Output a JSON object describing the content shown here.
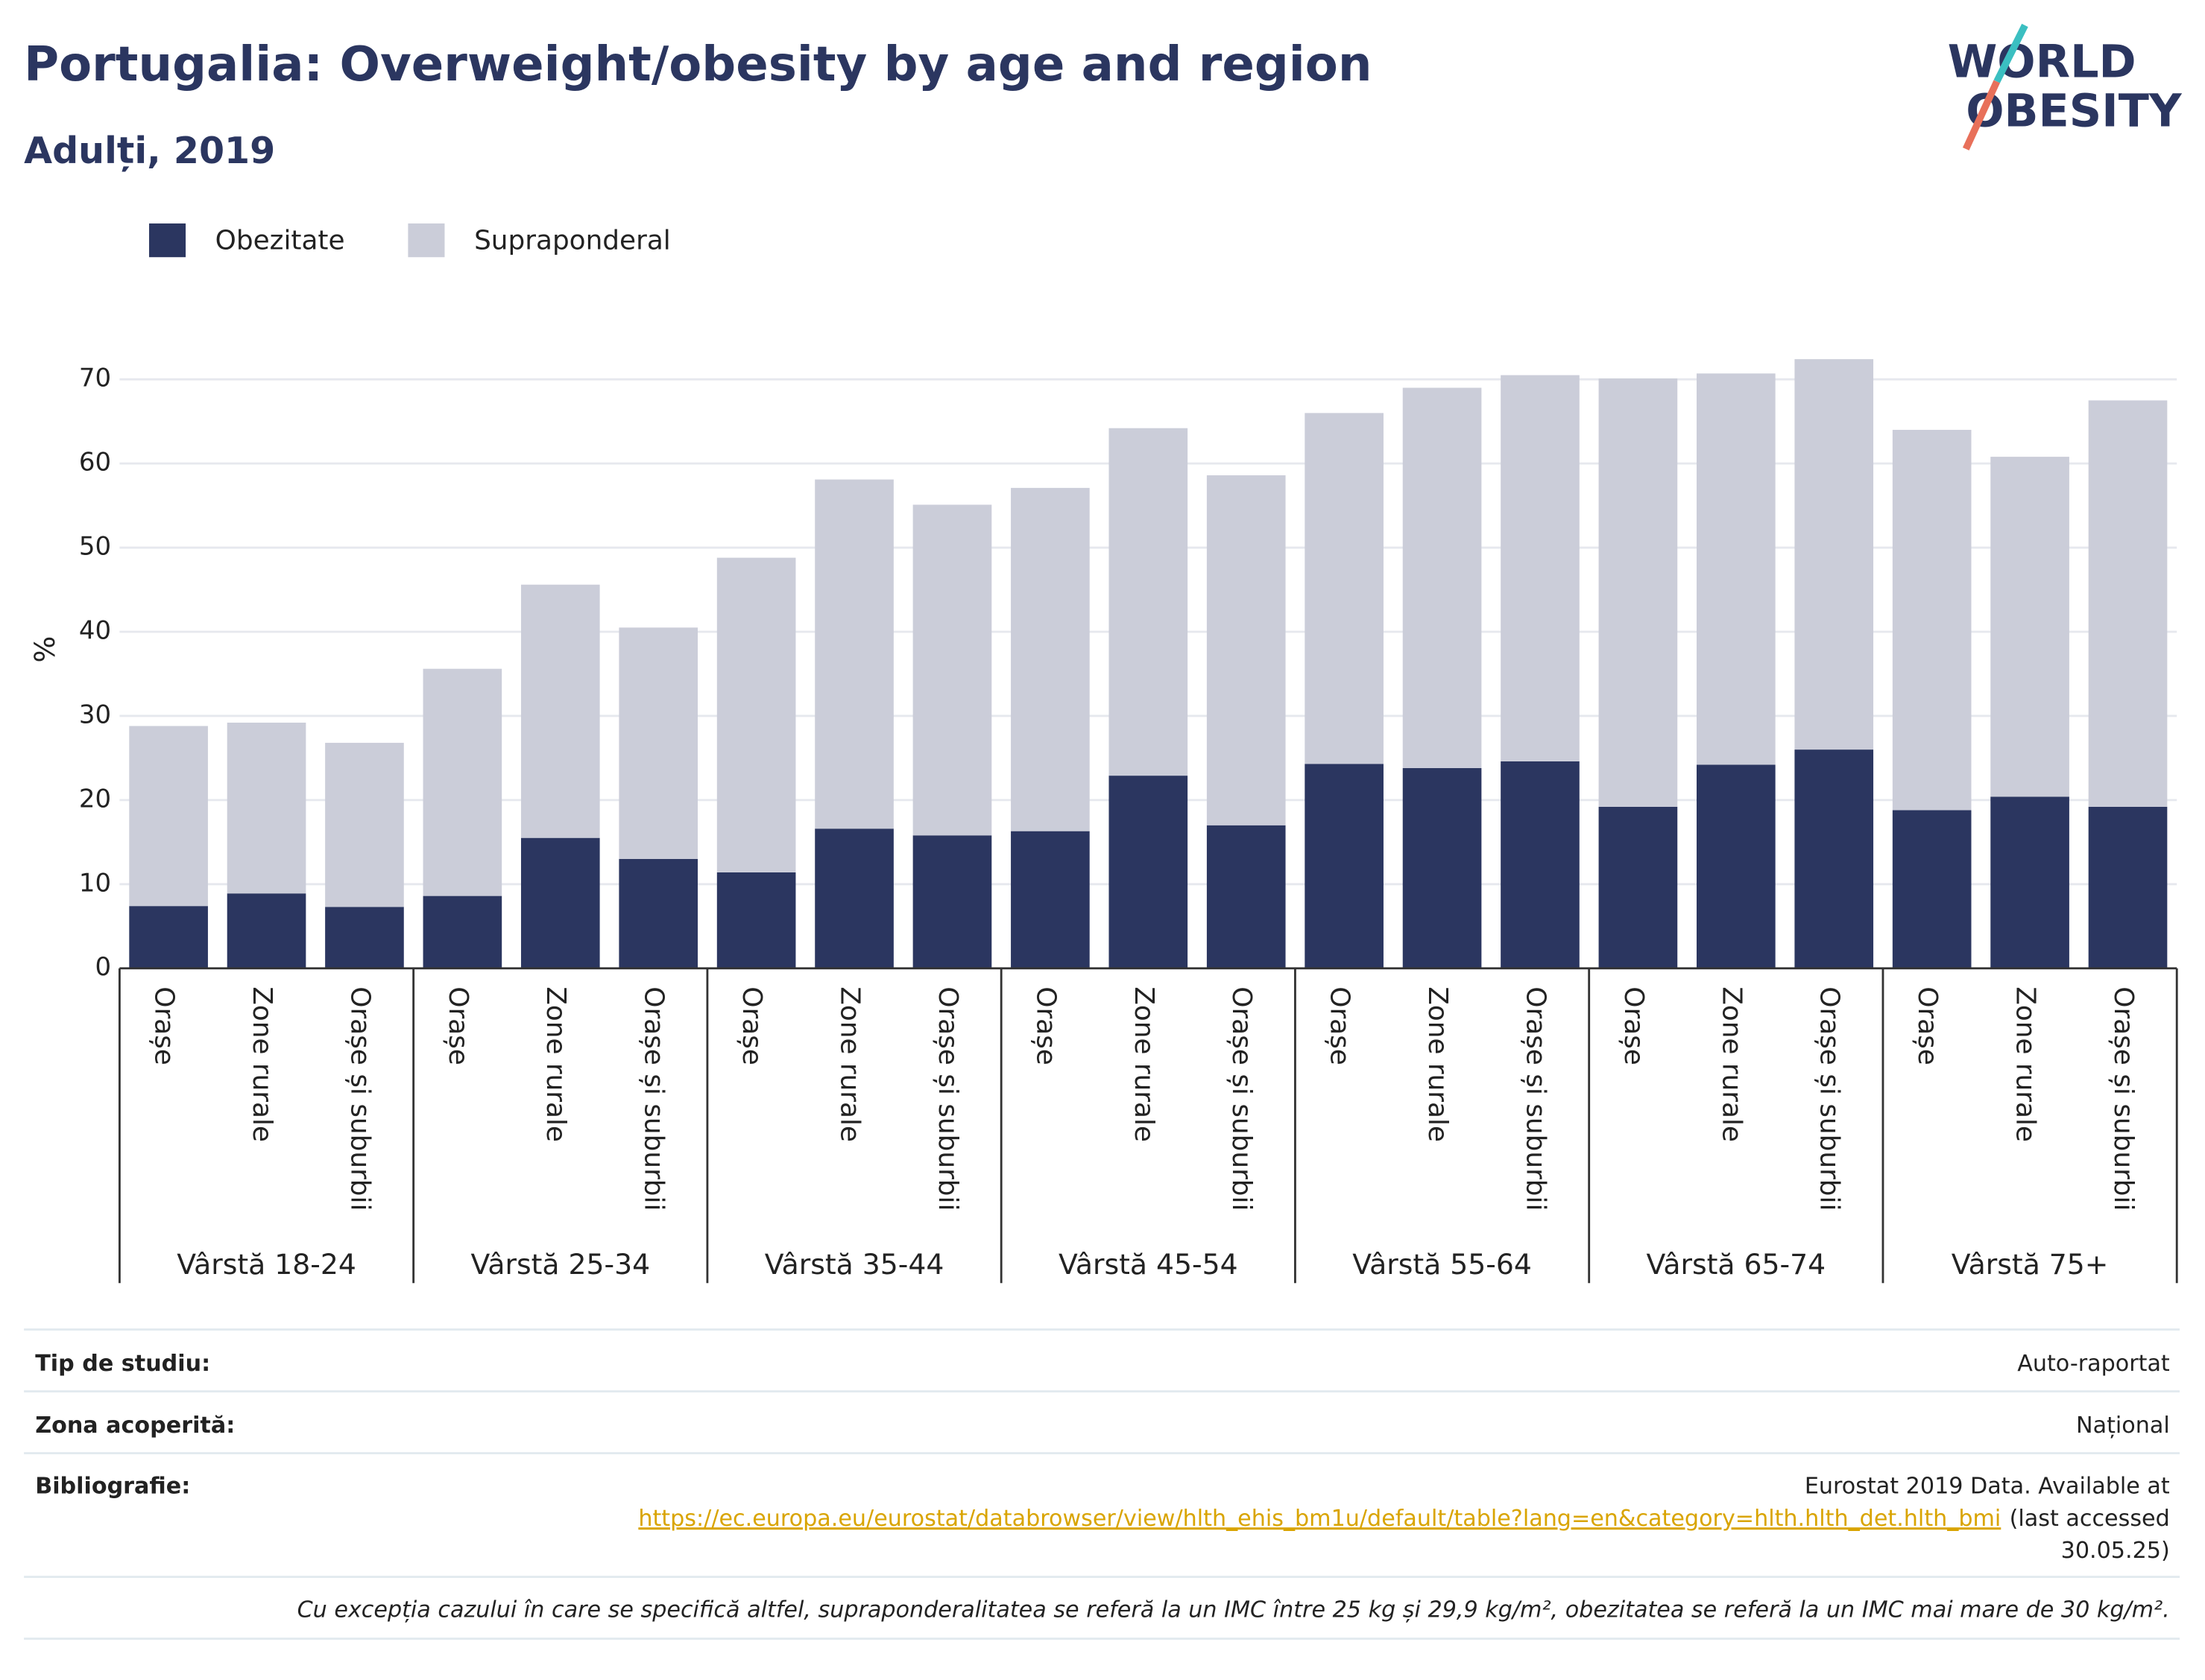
{
  "chart_data": {
    "type": "stacked_bar",
    "title": "Portugalia: Overweight/obesity by age and region",
    "subtitle": "Adulți, 2019",
    "y_label": "%",
    "logo": [
      "WORLD",
      "OBESITY"
    ],
    "categories": [
      "Orașe",
      "Zone rurale",
      "Orașe și suburbii",
      "Orașe",
      "Zone rurale",
      "Orașe și suburbii",
      "Orașe",
      "Zone rurale",
      "Orașe și suburbii",
      "Orașe",
      "Zone rurale",
      "Orașe și suburbii",
      "Orașe",
      "Zone rurale",
      "Orașe și suburbii",
      "Orașe",
      "Zone rurale",
      "Orașe și suburbii",
      "Orașe",
      "Zone rurale",
      "Orașe și suburbii"
    ],
    "groups": [
      "Vârstă 18-24",
      "Vârstă 25-34",
      "Vârstă 35-44",
      "Vârstă 45-54",
      "Vârstă 55-64",
      "Vârstă 65-74",
      "Vârstă 75+"
    ],
    "series": [
      {
        "name": "Obezitate",
        "color": "#2b3660",
        "values": [
          7.4,
          8.9,
          7.3,
          8.6,
          15.5,
          13.0,
          11.4,
          16.6,
          15.8,
          16.3,
          22.9,
          17.0,
          24.3,
          23.8,
          24.6,
          19.2,
          24.2,
          26.0,
          18.8,
          20.4,
          19.2
        ]
      },
      {
        "name": "Supraponderal",
        "color": "#cbcdd9",
        "values": [
          21.4,
          20.3,
          19.5,
          27.0,
          30.1,
          27.5,
          37.4,
          41.5,
          39.3,
          40.8,
          41.3,
          41.6,
          41.7,
          45.2,
          45.9,
          50.9,
          46.5,
          46.4,
          45.2,
          40.4,
          48.3
        ]
      }
    ],
    "ylim": [
      0,
      75
    ],
    "yticks": [
      0,
      10,
      20,
      30,
      40,
      50,
      60,
      70
    ],
    "grid": true,
    "legend": "top-left"
  },
  "info_table": {
    "rows": [
      {
        "label": "Tip de studiu:",
        "value": [
          "Auto-raportat"
        ]
      },
      {
        "label": "Zona acoperită:",
        "value": [
          "Național"
        ]
      },
      {
        "label": "Bibliografie:",
        "value": [
          "Eurostat 2019 Data. Available at",
          "https://ec.europa.eu/eurostat/databrowser/view/hlth_ehis_bm1u/default/table?lang=en&category=hlth.hlth_det.hlth_bmi",
          "(last accessed",
          "30.05.25)"
        ]
      }
    ],
    "note": "Cu excepția cazului în care se specifică altfel, supraponderalitatea se referă la un IMC între 25 kg și 29,9 kg/m², obezitatea se referă la un IMC mai mare de 30 kg/m²."
  }
}
